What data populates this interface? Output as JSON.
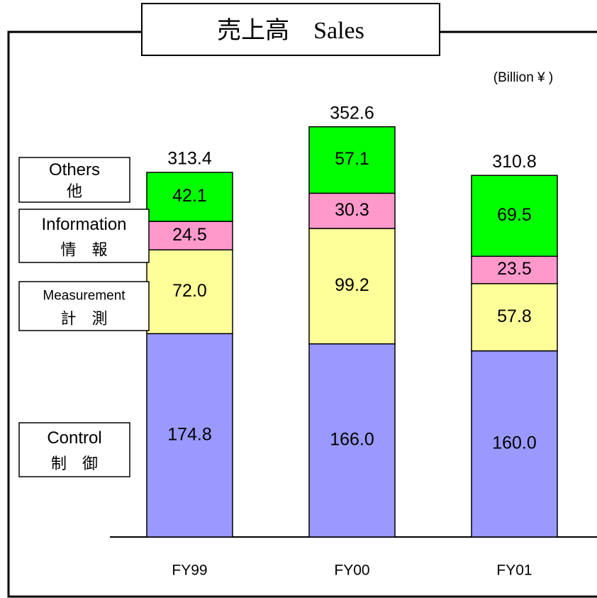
{
  "chart_data": {
    "type": "stacked_bar",
    "title": "売上高　Sales",
    "unit": "(Billion ¥ )",
    "categories": [
      "FY99",
      "FY00",
      "FY01"
    ],
    "series": [
      {
        "name": "Control",
        "name_local": "制　御",
        "color": "#9999ff",
        "values": [
          174.8,
          166.0,
          160.0
        ],
        "value_labels": [
          "174.8",
          "166.0",
          "160.0"
        ]
      },
      {
        "name": "Measurement",
        "name_local": "計　測",
        "color": "#ffff99",
        "values": [
          72.0,
          99.2,
          57.8
        ],
        "value_labels": [
          "72.0",
          "99.2",
          "57.8"
        ]
      },
      {
        "name": "Information",
        "name_local": "情　報",
        "color": "#ff99cc",
        "values": [
          24.5,
          30.3,
          23.5
        ],
        "value_labels": [
          "24.5",
          "30.3",
          "23.5"
        ]
      },
      {
        "name": "Others",
        "name_local": "他",
        "color": "#00ff00",
        "values": [
          42.1,
          57.1,
          69.5
        ],
        "value_labels": [
          "42.1",
          "57.1",
          "69.5"
        ]
      }
    ],
    "totals": [
      313.4,
      352.6,
      310.8
    ],
    "ylim": [
      0,
      400
    ]
  }
}
